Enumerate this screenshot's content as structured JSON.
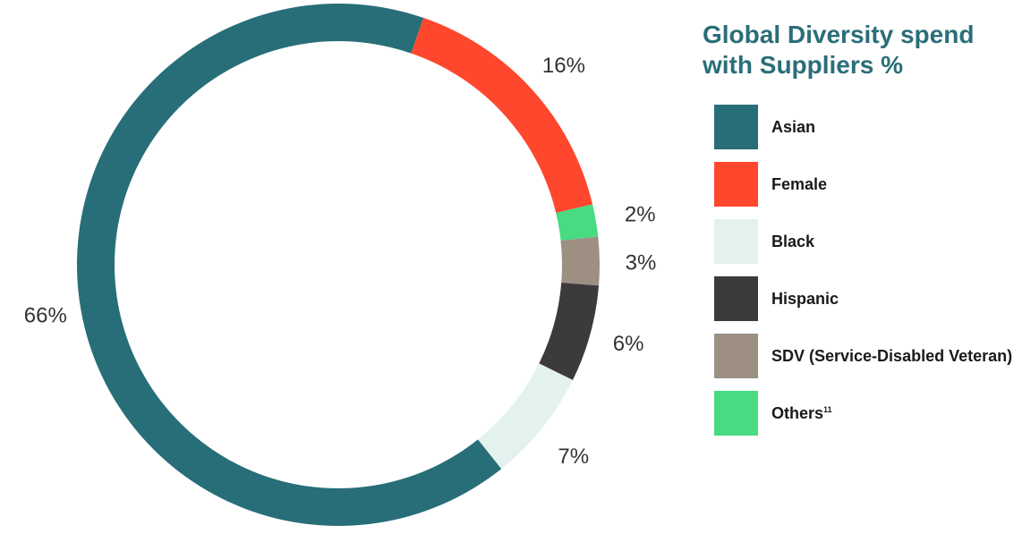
{
  "chart_data": {
    "type": "pie",
    "style": "donut",
    "title_lines": [
      "Global Diversity spend",
      "with Suppliers %"
    ],
    "legend_position": "right",
    "categories": [
      "Asian",
      "Female",
      "Black",
      "Hispanic",
      "SDV (Service-Disabled Veteran)",
      "Others"
    ],
    "values": [
      66,
      16,
      7,
      6,
      3,
      2
    ],
    "value_labels": [
      "66%",
      "16%",
      "7%",
      "6%",
      "3%",
      "2%"
    ],
    "colors": [
      "#276e78",
      "#ff472d",
      "#e3f2ef",
      "#3c3a3b",
      "#9e8f83",
      "#48db82"
    ],
    "legend_footnote": {
      "Others": "11"
    }
  }
}
